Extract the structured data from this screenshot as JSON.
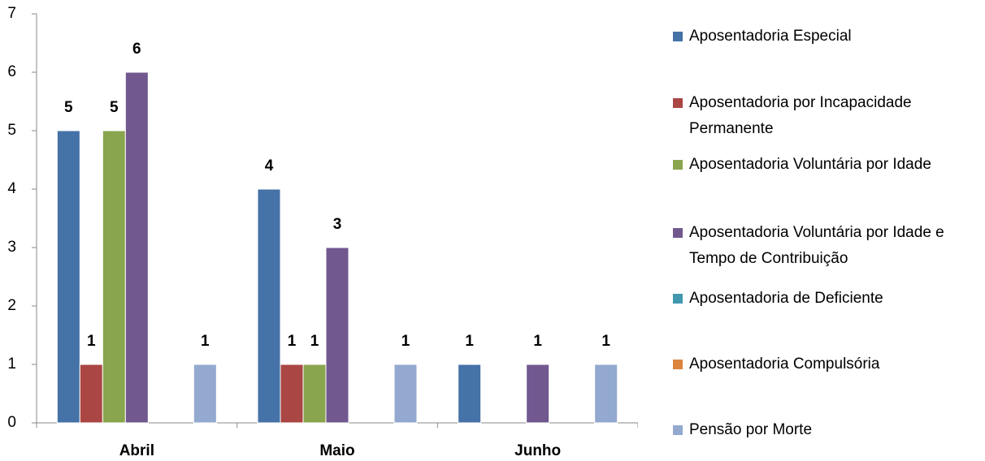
{
  "chart_data": {
    "type": "bar",
    "categories": [
      "Abril",
      "Maio",
      "Junho"
    ],
    "series": [
      {
        "name": "Aposentadoria Especial",
        "color": "#4572a7",
        "values": [
          5,
          4,
          1
        ]
      },
      {
        "name": "Aposentadoria por Incapacidade Permanente",
        "color": "#aa4643",
        "values": [
          1,
          1,
          null
        ]
      },
      {
        "name": "Aposentadoria Voluntária por Idade",
        "color": "#89a54e",
        "values": [
          5,
          1,
          null
        ]
      },
      {
        "name": "Aposentadoria Voluntária por Idade e Tempo de Contribuição",
        "color": "#71588f",
        "values": [
          6,
          3,
          1
        ]
      },
      {
        "name": "Aposentadoria de Deficiente",
        "color": "#4198af",
        "values": [
          null,
          null,
          null
        ]
      },
      {
        "name": "Aposentadoria Compulsória",
        "color": "#db843d",
        "values": [
          null,
          null,
          null
        ]
      },
      {
        "name": "Pensão por Morte",
        "color": "#93a9cf",
        "values": [
          1,
          1,
          1
        ]
      }
    ],
    "ylim": [
      0,
      7
    ],
    "yticks": [
      0,
      1,
      2,
      3,
      4,
      5,
      6,
      7
    ],
    "grid": false,
    "legend": "right"
  }
}
